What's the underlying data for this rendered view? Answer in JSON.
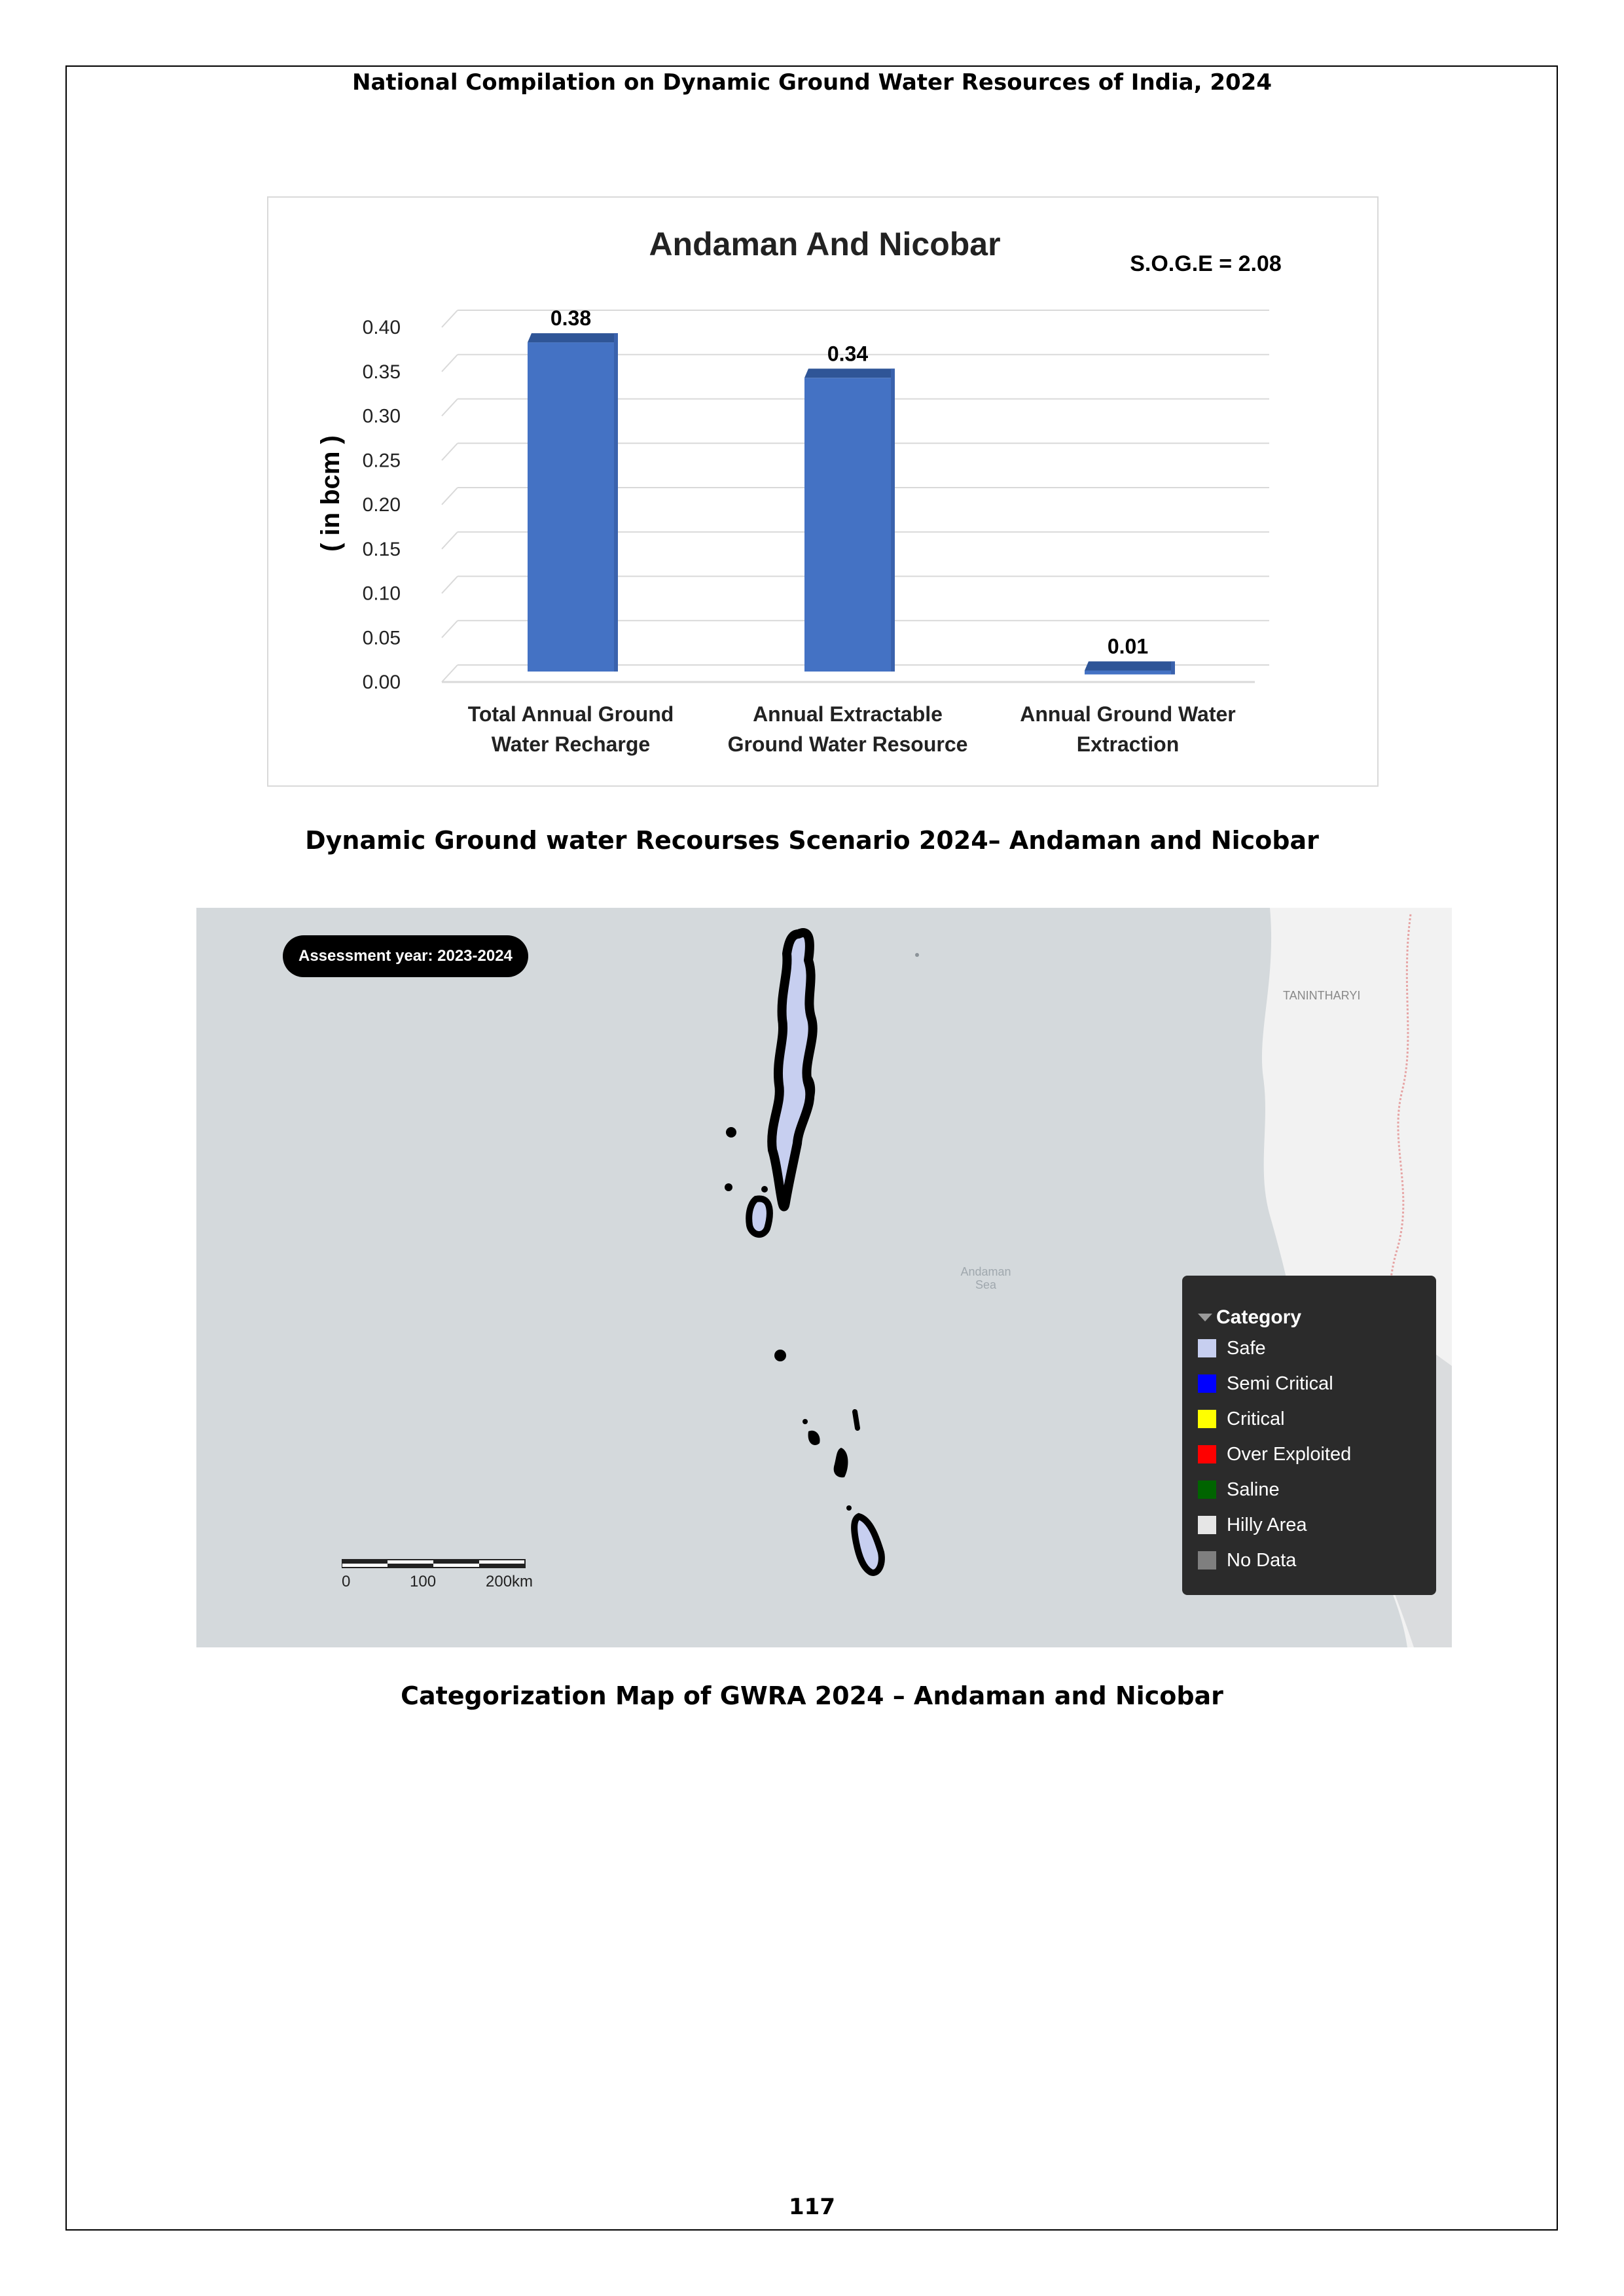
{
  "header": {
    "title": "National Compilation on Dynamic Ground Water Resources of India, 2024"
  },
  "chart_data": {
    "type": "bar",
    "title": "Andaman And Nicobar",
    "annotation": "S.O.G.E = 2.08",
    "ylabel": "( in bcm )",
    "xlabel": "",
    "ylim": [
      0,
      0.4
    ],
    "y_ticks": [
      "0.00",
      "0.05",
      "0.10",
      "0.15",
      "0.20",
      "0.25",
      "0.30",
      "0.35",
      "0.40"
    ],
    "categories": [
      [
        "Total Annual  Ground",
        "Water Recharge"
      ],
      [
        "Annual Extractable",
        "Ground Water Resource"
      ],
      [
        "Annual Ground Water",
        "Extraction"
      ]
    ],
    "values": [
      0.38,
      0.34,
      0.01
    ],
    "data_labels": [
      "0.38",
      "0.34",
      "0.01"
    ],
    "grid": true,
    "colors": {
      "bar": "#4472c4",
      "bar_top": "#2f5597",
      "grid": "#d9d9d9"
    }
  },
  "chart_caption": "Dynamic Ground water Recourses Scenario 2024– Andaman and Nicobar",
  "map": {
    "badge": "Assessment year: 2023-2024",
    "sea_label": [
      "Andaman",
      "Sea"
    ],
    "region_label": "TANINTHARYI",
    "legend": {
      "title": "Category",
      "items": [
        {
          "label": "Safe",
          "color": "#c7cff0"
        },
        {
          "label": "Semi Critical",
          "color": "#0000ff"
        },
        {
          "label": "Critical",
          "color": "#ffff00"
        },
        {
          "label": "Over Exploited",
          "color": "#ff0000"
        },
        {
          "label": "Saline",
          "color": "#006400"
        },
        {
          "label": "Hilly Area",
          "color": "#e6e6e6"
        },
        {
          "label": "No Data",
          "color": "#7f7f7f"
        }
      ]
    },
    "scale": {
      "labels": [
        "0",
        "100",
        "200km"
      ]
    }
  },
  "map_caption": "Categorization Map of GWRA 2024 – Andaman and Nicobar",
  "page_number": "117"
}
